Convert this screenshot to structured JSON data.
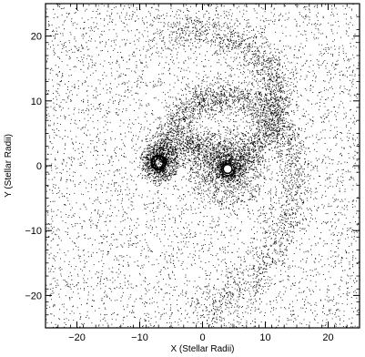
{
  "chart_data": {
    "type": "scatter",
    "title": "",
    "xlabel": "X (Stellar Radii)",
    "ylabel": "Y (Stellar Radii)",
    "xlim": [
      -25,
      25
    ],
    "ylim": [
      -25,
      25
    ],
    "xticks": [
      -20,
      -10,
      0,
      10,
      20
    ],
    "yticks": [
      -20,
      -10,
      0,
      10,
      20
    ],
    "xtick_labels": [
      "−20",
      "−10",
      "0",
      "10",
      "20"
    ],
    "ytick_labels": [
      "−20",
      "−10",
      "0",
      "10",
      "20"
    ],
    "grid": false,
    "marker_color": "#000000",
    "background_color": "#ffffff",
    "objects": {
      "primary_star": {
        "x": 4,
        "y": -0.5,
        "radius": 0.7
      },
      "companion_star": {
        "x": -7,
        "y": 0.5,
        "radius": 1.1
      }
    },
    "features": {
      "spiral_arms": [
        {
          "points": [
            [
              4,
              -0.5
            ],
            [
              6.5,
              1.5
            ],
            [
              9,
              4
            ],
            [
              11,
              7
            ],
            [
              12,
              10
            ],
            [
              11.5,
              13.5
            ],
            [
              9.5,
              16.5
            ],
            [
              6,
              19
            ],
            [
              2,
              20.5
            ],
            [
              -2.5,
              21
            ],
            [
              -6.5,
              20
            ]
          ]
        },
        {
          "points": [
            [
              -7,
              0.5
            ],
            [
              -6,
              4
            ],
            [
              -3,
              8.5
            ],
            [
              1,
              10.5
            ],
            [
              5,
              10.8
            ],
            [
              9.5,
              9.3
            ],
            [
              13,
              5
            ],
            [
              14.5,
              0
            ],
            [
              14,
              -6
            ],
            [
              12,
              -12
            ],
            [
              8.5,
              -17
            ],
            [
              4,
              -20.5
            ],
            [
              -1,
              -22.5
            ]
          ]
        }
      ],
      "background_density": "uniform sparse"
    }
  }
}
